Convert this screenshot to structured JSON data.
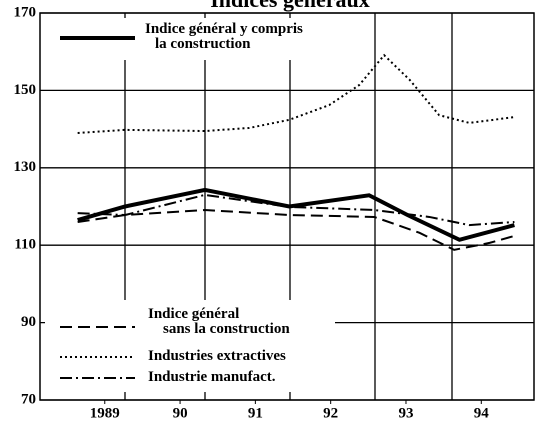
{
  "chart_data": {
    "type": "line",
    "title": "Indices généraux",
    "xlim": [
      1988.14,
      1994.7
    ],
    "xticks": [
      {
        "value": 1989,
        "label": "1989"
      },
      {
        "value": 1990,
        "label": "90"
      },
      {
        "value": 1991,
        "label": "91"
      },
      {
        "value": 1992,
        "label": "92"
      },
      {
        "value": 1993,
        "label": "93"
      },
      {
        "value": 1994,
        "label": "94"
      }
    ],
    "ylim": [
      70,
      170
    ],
    "yticks": [
      70,
      90,
      110,
      130,
      150,
      170
    ],
    "grid": true,
    "series": [
      {
        "name": "Indice général y compris\nla construction",
        "color": "#000",
        "style": "solid",
        "x": [
          1988.64,
          1989.27,
          1990.33,
          1991.45,
          1992.51,
          1993.02,
          1993.71,
          1994.44
        ],
        "values": [
          116.5,
          120,
          124.3,
          120,
          122.9,
          117.8,
          111.4,
          115.2
        ]
      },
      {
        "name": "Indice général\nsans la construction",
        "color": "#000",
        "style": "dashed",
        "x": [
          1988.64,
          1989.27,
          1990.33,
          1991.45,
          1992.58,
          1993.18,
          1993.64,
          1994.11,
          1994.44
        ],
        "values": [
          116,
          117.8,
          119.1,
          117.8,
          117.3,
          113.2,
          108.8,
          110.6,
          112.4
        ]
      },
      {
        "name": "Industries extractives",
        "color": "#000",
        "style": "dotted",
        "x": [
          1988.64,
          1989.27,
          1990.33,
          1990.92,
          1991.45,
          1991.98,
          1992.38,
          1992.71,
          1993.05,
          1993.44,
          1993.84,
          1994.44
        ],
        "values": [
          139,
          139.8,
          139.5,
          140.3,
          142.4,
          146.2,
          151.4,
          159.1,
          152.7,
          143.6,
          141.6,
          143.1
        ]
      },
      {
        "name": "Industrie manufact.",
        "color": "#000",
        "style": "dashdot",
        "x": [
          1988.64,
          1989.27,
          1990.33,
          1991.45,
          1992.58,
          1993.31,
          1993.84,
          1994.44
        ],
        "values": [
          118.3,
          117.8,
          123,
          119.9,
          119.1,
          117.3,
          115.2,
          116
        ]
      }
    ]
  }
}
